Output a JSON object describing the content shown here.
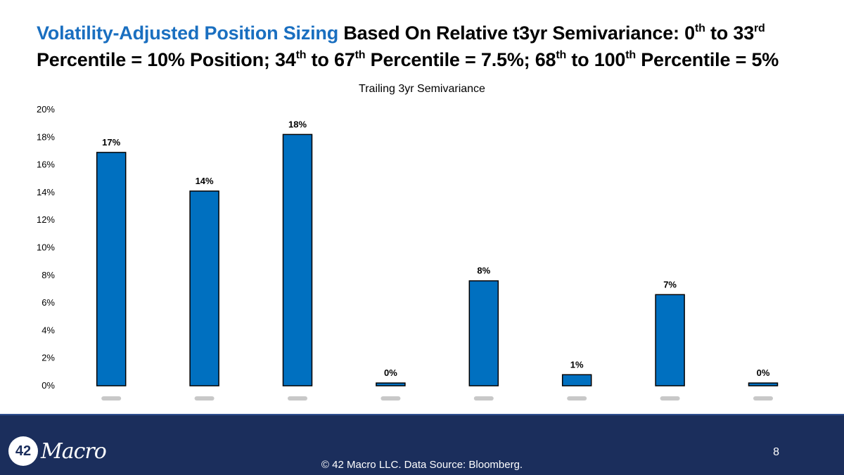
{
  "title": {
    "highlight": "Volatility-Adjusted Position Sizing",
    "line1_a": " Based On Relative t3yr Semivariance: 0",
    "sup1": "th",
    "line1_b": " to 33",
    "sup2": "rd",
    "line2_a": "Percentile = 10% Position; 34",
    "sup3": "th",
    "line2_b": " to 67",
    "sup4": "th",
    "line2_c": " Percentile = 7.5%; 68",
    "sup5": "th",
    "line2_d": " to 100",
    "sup6": "th",
    "line2_e": " Percentile = 5%"
  },
  "colors": {
    "title_highlight": "#1a6fc0",
    "bar_fill": "#0070c0",
    "footer_bg": "#1b2e5c"
  },
  "chart_data": {
    "type": "bar",
    "title": "Trailing 3yr Semivariance",
    "categories": [
      "",
      "",
      "",
      "",
      "",
      "",
      "",
      ""
    ],
    "values": [
      16.9,
      14.1,
      18.2,
      0.2,
      7.6,
      0.8,
      6.6,
      0.2
    ],
    "data_labels": [
      "17%",
      "14%",
      "18%",
      "0%",
      "8%",
      "1%",
      "7%",
      "0%"
    ],
    "ylim": [
      0,
      20
    ],
    "yticks": [
      "0%",
      "2%",
      "4%",
      "6%",
      "8%",
      "10%",
      "12%",
      "14%",
      "16%",
      "18%",
      "20%"
    ],
    "grid": false,
    "legend": "none"
  },
  "footer": {
    "logo_number": "42",
    "logo_word": "Macro",
    "copyright": "© 42 Macro LLC. Data Source: Bloomberg.",
    "page_number": "8"
  }
}
